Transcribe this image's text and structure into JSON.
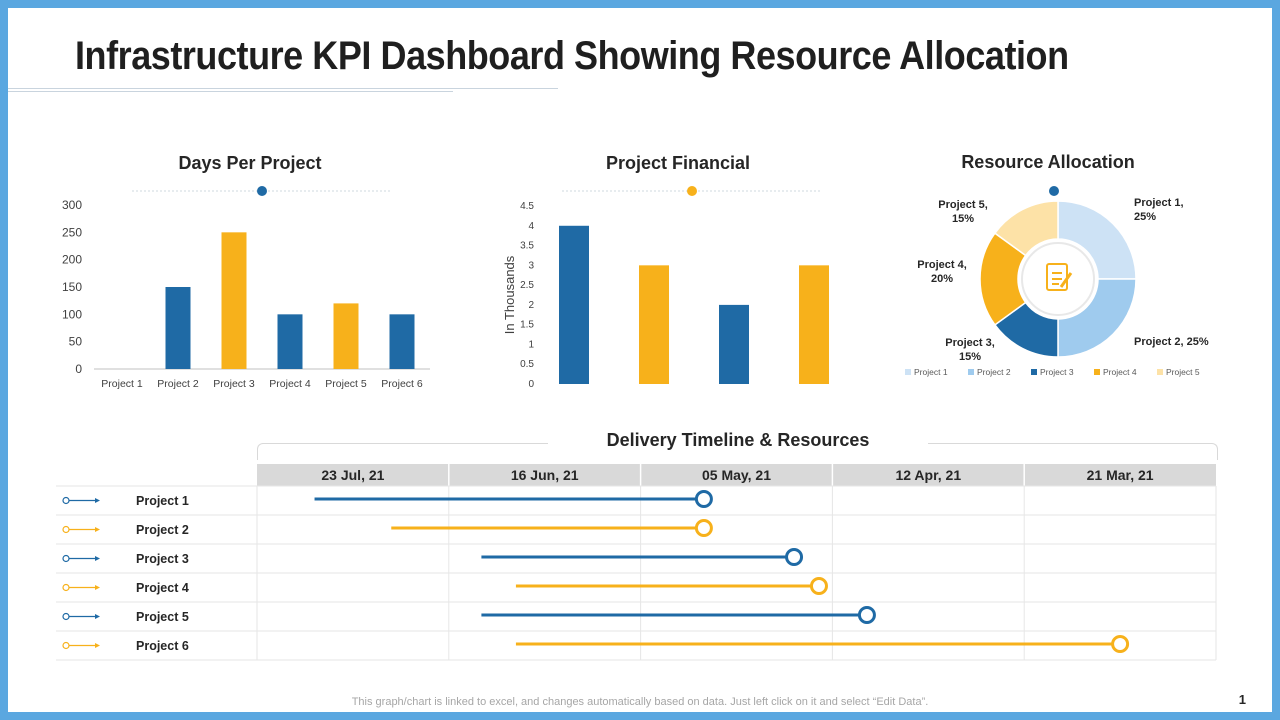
{
  "slide": {
    "title": "Infrastructure KPI Dashboard Showing Resource Allocation",
    "footer": "This graph/chart is linked to excel, and changes automatically based on data. Just left click on it and select “Edit Data”.",
    "page_number": "1"
  },
  "colors": {
    "blue": "#1f6aa5",
    "yellow": "#f7b11b",
    "light_blue": "#cde2f5",
    "mid_blue": "#9fcbee",
    "pale_yellow": "#fde2a7",
    "grid": "#e6e6e6",
    "header_bg": "#d9d9d9"
  },
  "chart_data": [
    {
      "type": "bar",
      "title": "Days Per Project",
      "categories": [
        "Project 1",
        "Project 2",
        "Project 3",
        "Project 4",
        "Project 5",
        "Project 6"
      ],
      "values": [
        0,
        150,
        250,
        100,
        120,
        100
      ],
      "bar_colors": [
        "#1f6aa5",
        "#1f6aa5",
        "#f7b11b",
        "#1f6aa5",
        "#f7b11b",
        "#1f6aa5"
      ],
      "yticks": [
        "0",
        "50",
        "100",
        "150",
        "200",
        "250",
        "300"
      ],
      "ylim": [
        0,
        300
      ],
      "xlabel": "",
      "ylabel": ""
    },
    {
      "type": "bar",
      "title": "Project Financial",
      "categories": [
        "",
        "",
        "",
        ""
      ],
      "values": [
        4,
        3,
        2,
        3
      ],
      "bar_colors": [
        "#1f6aa5",
        "#f7b11b",
        "#1f6aa5",
        "#f7b11b"
      ],
      "yticks": [
        "0",
        "0.5",
        "1",
        "1.5",
        "2",
        "2.5",
        "3",
        "3.5",
        "4",
        "4.5"
      ],
      "ylim": [
        0,
        4.5
      ],
      "xlabel": "",
      "ylabel": "In Thousands"
    },
    {
      "type": "pie",
      "title": "Resource Allocation",
      "labels": [
        "Project 1",
        "Project 2",
        "Project 3",
        "Project 4",
        "Project 5"
      ],
      "values": [
        25,
        25,
        15,
        20,
        15
      ],
      "colors": [
        "#cde2f5",
        "#9fcbee",
        "#1f6aa5",
        "#f7b11b",
        "#fde2a7"
      ],
      "data_labels": [
        [
          "Project 1,",
          "25%"
        ],
        [
          "Project 2, 25%"
        ],
        [
          "Project 3,",
          "15%"
        ],
        [
          "Project 4,",
          "20%"
        ],
        [
          "Project 5,",
          "15%"
        ]
      ],
      "legend": [
        "Project 1",
        "Project 2",
        "Project 3",
        "Project 4",
        "Project 5"
      ],
      "legend_position": "bottom"
    },
    {
      "type": "table",
      "title": "Delivery Timeline & Resources",
      "columns": [
        "23 Jul, 21",
        "16 Jun, 21",
        "05 May, 21",
        "12 Apr, 21",
        "21 Mar, 21"
      ],
      "rows": [
        {
          "label": "Project 1",
          "start_col": 0.3,
          "end_col": 2.33,
          "color": "#1f6aa5"
        },
        {
          "label": "Project 2",
          "start_col": 0.7,
          "end_col": 2.33,
          "color": "#f7b11b"
        },
        {
          "label": "Project 3",
          "start_col": 1.17,
          "end_col": 2.8,
          "color": "#1f6aa5"
        },
        {
          "label": "Project 4",
          "start_col": 1.35,
          "end_col": 2.93,
          "color": "#f7b11b"
        },
        {
          "label": "Project 5",
          "start_col": 1.17,
          "end_col": 3.18,
          "color": "#1f6aa5"
        },
        {
          "label": "Project 6",
          "start_col": 1.35,
          "end_col": 4.5,
          "color": "#f7b11b"
        }
      ]
    }
  ]
}
